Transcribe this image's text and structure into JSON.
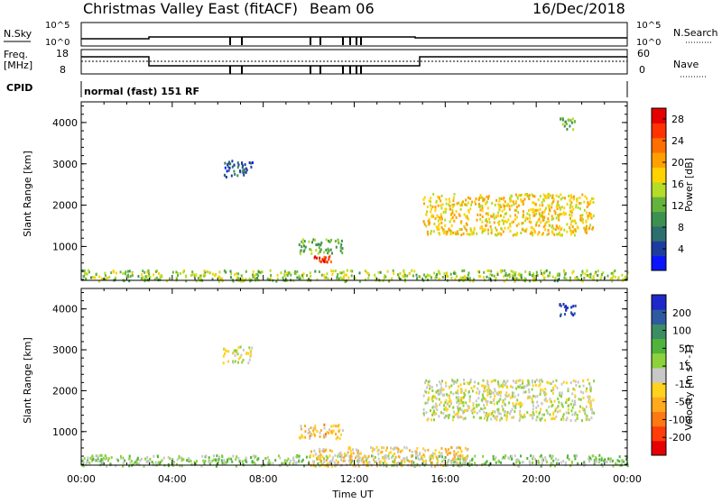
{
  "header": {
    "title": "Christmas Valley East (fitACF)",
    "beam": "Beam 06",
    "date": "16/Dec/2018"
  },
  "param_panels": {
    "nsky_label": "N.Sky",
    "nsky_ticks": [
      "10^5",
      "10^0"
    ],
    "nsearch_label": "N.Search",
    "nsearch_ticks": [
      "10^5",
      "10^0"
    ],
    "freq_label_1": "Freq.",
    "freq_label_2": "[MHz]",
    "freq_ticks": [
      "18",
      "8"
    ],
    "nave_label": "Nave",
    "nave_ticks": [
      "60",
      "0"
    ],
    "cpid_label": "CPID",
    "cpid_text": "normal (fast) 151 RF"
  },
  "colors": {
    "power_scale": [
      "#0a14ff",
      "#1e3ca0",
      "#2d6e6e",
      "#3c9150",
      "#64b43c",
      "#b4dc28",
      "#ffd200",
      "#ffa000",
      "#ff6e00",
      "#ff3200",
      "#e60000"
    ],
    "velocity_scale": [
      "#1e28c8",
      "#2d5aa0",
      "#3c8c64",
      "#50b43c",
      "#8cd23c",
      "#c8c8c8",
      "#ffd21e",
      "#ffaa1e",
      "#ff7814",
      "#ff3c0a",
      "#e60000"
    ]
  },
  "chart_data": [
    {
      "type": "heatmap",
      "title": "Power",
      "xlabel": "",
      "ylabel": "Slant Range [km]",
      "x_ticks": [
        "00:00",
        "04:00",
        "08:00",
        "12:00",
        "16:00",
        "20:00",
        "00:00"
      ],
      "xlim_hours": [
        0,
        24
      ],
      "ylim_km": [
        180,
        4500
      ],
      "y_ticks": [
        1000,
        2000,
        3000,
        4000
      ],
      "colorbar_label": "Power [dB]",
      "colorbar_ticks": [
        4,
        8,
        12,
        16,
        20,
        24,
        28
      ],
      "clim": [
        0,
        30
      ],
      "regions": [
        {
          "t0": 0.0,
          "t1": 24.0,
          "r0": 180,
          "r1": 450,
          "value": 14
        },
        {
          "t0": 9.5,
          "t1": 11.5,
          "r0": 850,
          "r1": 1200,
          "value": 12
        },
        {
          "t0": 10.2,
          "t1": 11.0,
          "r0": 650,
          "r1": 800,
          "value": 26
        },
        {
          "t0": 15.0,
          "t1": 22.5,
          "r0": 1300,
          "r1": 2300,
          "value": 18
        },
        {
          "t0": 21.0,
          "t1": 21.7,
          "r0": 3850,
          "r1": 4150,
          "value": 12
        },
        {
          "t0": 6.2,
          "t1": 7.5,
          "r0": 2700,
          "r1": 3100,
          "value": 6
        }
      ]
    },
    {
      "type": "heatmap",
      "title": "Velocity",
      "xlabel": "Time UT",
      "ylabel": "Slant Range [km]",
      "x_ticks": [
        "00:00",
        "04:00",
        "08:00",
        "12:00",
        "16:00",
        "20:00",
        "00:00"
      ],
      "xlim_hours": [
        0,
        24
      ],
      "ylim_km": [
        180,
        4500
      ],
      "y_ticks": [
        1000,
        2000,
        3000,
        4000
      ],
      "colorbar_label": "Velocity [m s^-1]",
      "colorbar_ticks": [
        200,
        100,
        50,
        15,
        -15,
        -50,
        -100,
        -200
      ],
      "clim": [
        -250,
        250
      ],
      "regions": [
        {
          "t0": 0.0,
          "t1": 24.0,
          "r0": 180,
          "r1": 450,
          "value": 40
        },
        {
          "t0": 10.0,
          "t1": 17.0,
          "r0": 180,
          "r1": 650,
          "value": -40
        },
        {
          "t0": 9.5,
          "t1": 11.5,
          "r0": 850,
          "r1": 1200,
          "value": -60
        },
        {
          "t0": 15.0,
          "t1": 22.5,
          "r0": 1300,
          "r1": 2300,
          "value": 0
        },
        {
          "t0": 21.0,
          "t1": 21.7,
          "r0": 3850,
          "r1": 4150,
          "value": 220
        },
        {
          "t0": 6.2,
          "t1": 7.5,
          "r0": 2700,
          "r1": 3100,
          "value": 0
        }
      ]
    }
  ]
}
